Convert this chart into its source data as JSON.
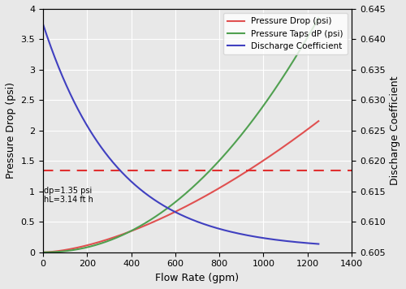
{
  "title": "",
  "xlabel": "Flow Rate (gpm)",
  "ylabel_left": "Pressure Drop (psi)",
  "ylabel_right": "Discharge Coefficient",
  "xlim": [
    0,
    1400
  ],
  "ylim_left": [
    0,
    4
  ],
  "ylim_right": [
    0.605,
    0.645
  ],
  "flow_max": 1250,
  "bg_color": "#e8e8e8",
  "grid_color": "white",
  "legend_labels": [
    "Pressure Drop (psi)",
    "Pressure Taps dP (psi)",
    "Discharge Coefficient"
  ],
  "legend_colors": [
    "#e05050",
    "#50a050",
    "#4040c0"
  ],
  "dashed_line_y": 1.35,
  "dashed_line_color": "#e03030",
  "annotation_line1": "dp=1.35 psi",
  "annotation_line2": "hL=3.14 ft h",
  "xticks": [
    0,
    200,
    400,
    600,
    800,
    1000,
    1200,
    1400
  ],
  "yticks_left": [
    0,
    0.5,
    1.0,
    1.5,
    2.0,
    2.5,
    3.0,
    3.5,
    4.0
  ],
  "yticks_right": [
    0.605,
    0.61,
    0.615,
    0.62,
    0.625,
    0.63,
    0.635,
    0.64,
    0.645
  ],
  "n_red": 1.6,
  "a_red_q": 1200,
  "a_red_val": 2.02,
  "n_green": 2.1,
  "a_green_q": 1250,
  "a_green_val": 3.85,
  "Cd_0": 0.6425,
  "Cd_inf": 0.6055,
  "k_cd": 0.003
}
